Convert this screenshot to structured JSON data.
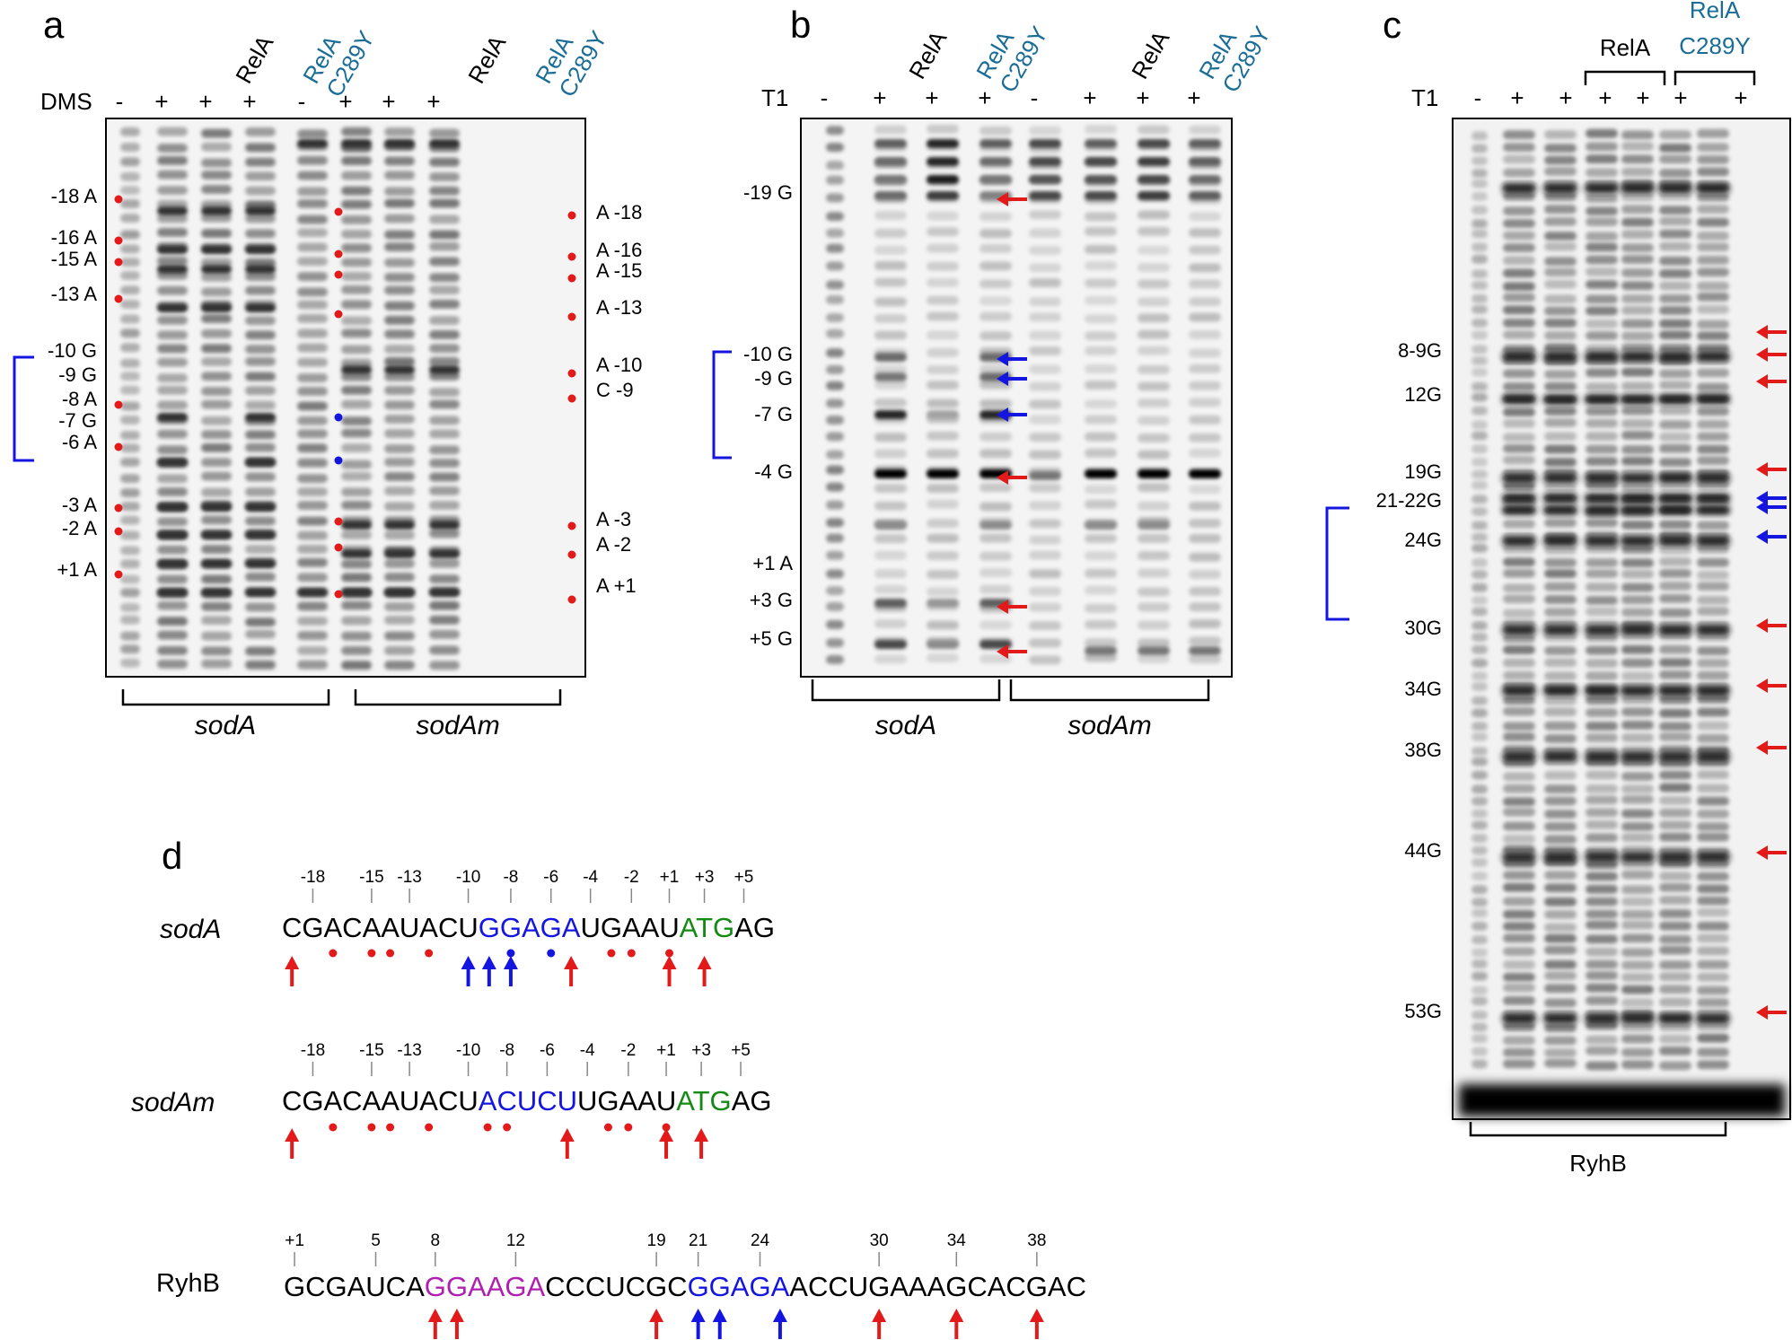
{
  "panels": {
    "a": {
      "letter": "a",
      "reagent": "DMS",
      "lane_signs": [
        "-",
        "+",
        "+",
        "+",
        "-",
        "+",
        "+",
        "+"
      ],
      "lane_headers": [
        {
          "text": "RelA",
          "color": "#000000"
        },
        {
          "text": "RelA\nC289Y",
          "color": "#1a6d96"
        },
        {
          "text": "RelA",
          "color": "#000000"
        },
        {
          "text": "RelA\nC289Y",
          "color": "#1a6d96"
        }
      ],
      "left_labels": [
        "-18 A",
        "-16 A",
        "-15 A",
        "-13 A",
        "-10 G",
        "-9 G",
        "-8 A",
        "-7 G",
        "-6 A",
        "-3 A",
        "-2 A",
        "+1 A"
      ],
      "right_labels": [
        "A -18",
        "A -16",
        "A -15",
        "A -13",
        "A -10",
        "C -9",
        "A -3",
        "A -2",
        "A +1"
      ],
      "groups": [
        "sodA",
        "sodAm"
      ]
    },
    "b": {
      "letter": "b",
      "reagent": "T1",
      "lane_signs": [
        "-",
        "+",
        "+",
        "+",
        "-",
        "+",
        "+",
        "+"
      ],
      "lane_headers": [
        {
          "text": "RelA",
          "color": "#000000"
        },
        {
          "text": "RelA\nC289Y",
          "color": "#1a6d96"
        },
        {
          "text": "RelA",
          "color": "#000000"
        },
        {
          "text": "RelA\nC289Y",
          "color": "#1a6d96"
        }
      ],
      "left_labels": [
        "-19 G",
        "-10 G",
        "-9 G",
        "-7 G",
        "-4 G",
        "+1 A",
        "+3 G",
        "+5 G"
      ],
      "groups": [
        "sodA",
        "sodAm"
      ]
    },
    "c": {
      "letter": "c",
      "reagent": "T1",
      "lane_signs": [
        "-",
        "+",
        "+",
        "+",
        "+",
        "+",
        "+"
      ],
      "brackets": [
        {
          "text": "RelA",
          "color": "#000000"
        },
        {
          "text": "RelA\nC289Y",
          "color": "#1a6d96"
        }
      ],
      "left_labels": [
        "8-9G",
        "12G",
        "19G",
        "21-22G",
        "24G",
        "30G",
        "34G",
        "38G",
        "44G",
        "53G"
      ],
      "group": "RyhB"
    },
    "d": {
      "letter": "d",
      "rows": [
        {
          "name": "sodA",
          "italic": true,
          "numbers": [
            "-18",
            "-15",
            "-13",
            "-10",
            "-8",
            "-6",
            "-4",
            "-2",
            "+1",
            "+3",
            "+5"
          ],
          "segments": [
            {
              "text": "CGACAAUACU",
              "color": "#000000"
            },
            {
              "text": "GGAGA",
              "color": "#1515e0"
            },
            {
              "text": "UGAAU",
              "color": "#000000"
            },
            {
              "text": "ATG",
              "color": "#138a13"
            },
            {
              "text": "AG",
              "color": "#000000"
            }
          ]
        },
        {
          "name": "sodAm",
          "italic": true,
          "numbers": [
            "-18",
            "-15",
            "-13",
            "-10",
            "-8",
            "-6",
            "-4",
            "-2",
            "+1",
            "+3",
            "+5"
          ],
          "segments": [
            {
              "text": "CGACAAUACU",
              "color": "#000000"
            },
            {
              "text": "ACUCU",
              "color": "#1515e0"
            },
            {
              "text": "UGAAU",
              "color": "#000000"
            },
            {
              "text": "ATG",
              "color": "#138a13"
            },
            {
              "text": "AG",
              "color": "#000000"
            }
          ]
        },
        {
          "name": "RyhB",
          "italic": false,
          "numbers": [
            "+1",
            "5",
            "8",
            "12",
            "19",
            "21",
            "24",
            "30",
            "34",
            "38"
          ],
          "segments": [
            {
              "text": "GCGAUCA",
              "color": "#000000"
            },
            {
              "text": "GGAAGA",
              "color": "#b020b0"
            },
            {
              "text": "CCCUCGC",
              "color": "#000000"
            },
            {
              "text": "GGAGA",
              "color": "#1515e0"
            },
            {
              "text": "ACCUGAAAGCACGAC",
              "color": "#000000"
            }
          ]
        }
      ]
    }
  },
  "colors": {
    "red_marker": "#e21a1a",
    "blue_marker": "#1515e0",
    "mutant_label": "#1a6d96",
    "start_codon": "#138a13",
    "ryhb_seed": "#b020b0"
  }
}
